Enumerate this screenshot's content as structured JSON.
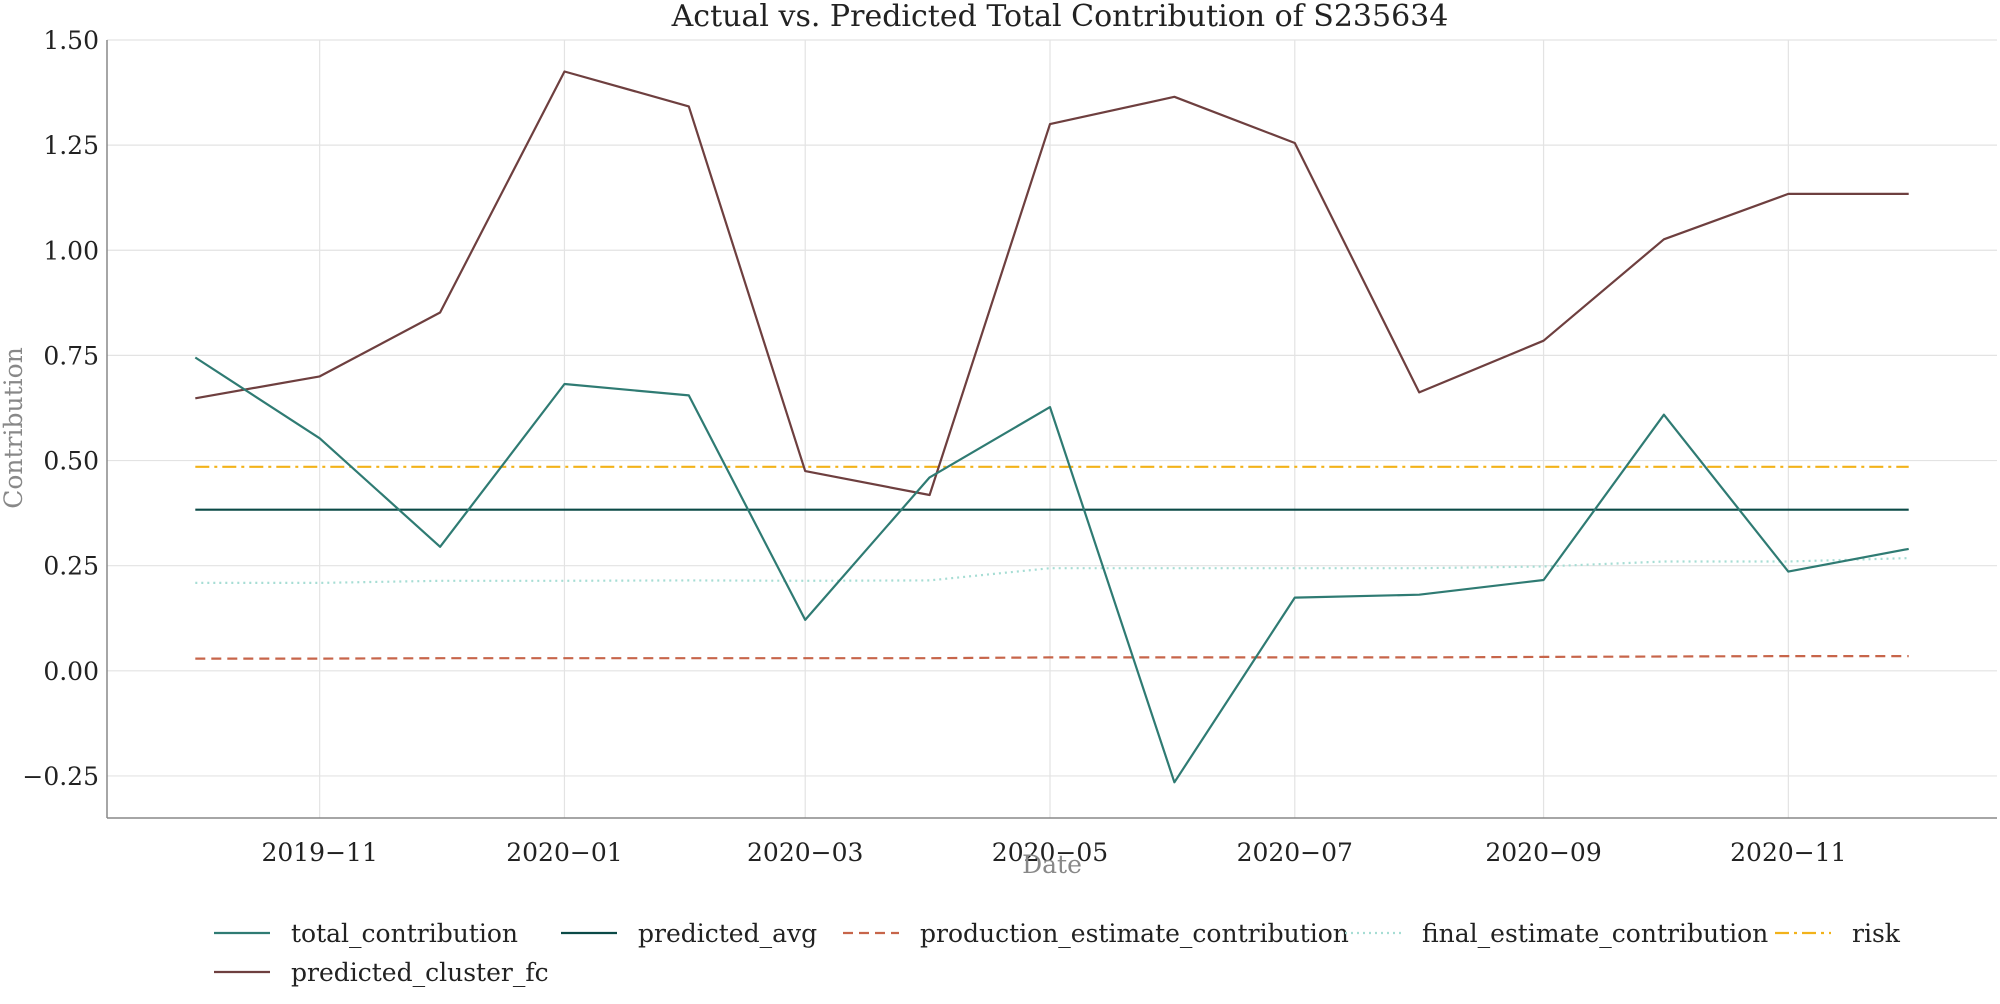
{
  "chart_data": {
    "type": "line",
    "title": "Actual vs. Predicted Total Contribution of S235634",
    "xlabel": "Date",
    "ylabel": "Contribution",
    "x": [
      "2019-10-01",
      "2019-11-01",
      "2019-12-01",
      "2020-01-01",
      "2020-02-01",
      "2020-03-01",
      "2020-04-01",
      "2020-05-01",
      "2020-06-01",
      "2020-07-01",
      "2020-08-01",
      "2020-09-01",
      "2020-10-01",
      "2020-11-01",
      "2020-12-01"
    ],
    "xlim": [
      "2019-09-09",
      "2020-12-23"
    ],
    "xticks": [
      {
        "date": "2019-11-01",
        "label": "2019−11"
      },
      {
        "date": "2020-01-01",
        "label": "2020−01"
      },
      {
        "date": "2020-03-01",
        "label": "2020−03"
      },
      {
        "date": "2020-05-01",
        "label": "2020−05"
      },
      {
        "date": "2020-07-01",
        "label": "2020−07"
      },
      {
        "date": "2020-09-01",
        "label": "2020−09"
      },
      {
        "date": "2020-11-01",
        "label": "2020−11"
      }
    ],
    "ylim": [
      -0.35,
      1.5
    ],
    "yticks": [
      {
        "value": 1.5,
        "label": "1.50"
      },
      {
        "value": 1.25,
        "label": "1.25"
      },
      {
        "value": 1.0,
        "label": "1.00"
      },
      {
        "value": 0.75,
        "label": "0.75"
      },
      {
        "value": 0.5,
        "label": "0.50"
      },
      {
        "value": 0.25,
        "label": "0.25"
      },
      {
        "value": 0.0,
        "label": "0.00"
      },
      {
        "value": -0.25,
        "label": "−0.25"
      }
    ],
    "grid": true,
    "legend_position": "bottom",
    "series": [
      {
        "name": "total_contribution",
        "color": "#2f7b73",
        "dash": "solid",
        "values": [
          0.745,
          0.553,
          0.295,
          0.682,
          0.655,
          0.121,
          0.46,
          0.627,
          -0.265,
          0.174,
          0.181,
          0.216,
          0.609,
          0.236,
          0.29
        ]
      },
      {
        "name": "predicted_avg",
        "color": "#0b4a47",
        "dash": "solid",
        "values": [
          0.383,
          0.383,
          0.383,
          0.383,
          0.383,
          0.383,
          0.383,
          0.383,
          0.383,
          0.383,
          0.383,
          0.383,
          0.383,
          0.383,
          0.383
        ]
      },
      {
        "name": "production_estimate_contribution",
        "color": "#c7654a",
        "dash": "dashed",
        "values": [
          0.029,
          0.029,
          0.03,
          0.03,
          0.03,
          0.03,
          0.03,
          0.032,
          0.032,
          0.032,
          0.032,
          0.033,
          0.034,
          0.035,
          0.035
        ]
      },
      {
        "name": "final_estimate_contribution",
        "color": "#a6ddd4",
        "dash": "dotted",
        "values": [
          0.209,
          0.209,
          0.214,
          0.214,
          0.215,
          0.214,
          0.215,
          0.244,
          0.244,
          0.244,
          0.244,
          0.248,
          0.26,
          0.26,
          0.268
        ]
      },
      {
        "name": "risk",
        "color": "#f2b21a",
        "dash": "dashdot",
        "values": [
          0.485,
          0.485,
          0.485,
          0.485,
          0.485,
          0.485,
          0.485,
          0.485,
          0.485,
          0.485,
          0.485,
          0.485,
          0.485,
          0.485,
          0.485
        ]
      },
      {
        "name": "predicted_cluster_fc",
        "color": "#6e3f3f",
        "dash": "solid",
        "values": [
          0.648,
          0.7,
          0.852,
          1.425,
          1.342,
          0.475,
          0.418,
          1.3,
          1.365,
          1.255,
          0.662,
          0.785,
          1.026,
          1.134,
          1.134
        ]
      }
    ]
  }
}
